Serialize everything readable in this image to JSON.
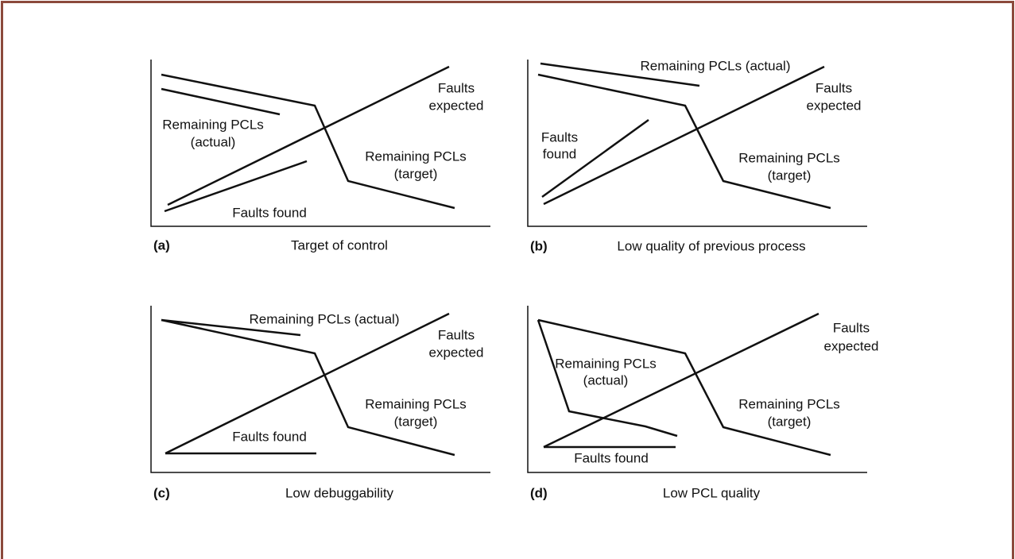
{
  "panels": [
    {
      "label": "(a)",
      "caption": "Target of control",
      "annotations": [
        [
          "Faults",
          "expected"
        ],
        [
          "Remaining PCLs",
          "(actual)"
        ],
        [
          "Remaining PCLs",
          "(target)"
        ],
        [
          "Faults found"
        ]
      ]
    },
    {
      "label": "(b)",
      "caption": "Low quality of previous process",
      "annotations": [
        [
          "Remaining PCLs (actual)"
        ],
        [
          "Faults",
          "expected"
        ],
        [
          "Faults",
          "found"
        ],
        [
          "Remaining PCLs",
          "(target)"
        ]
      ]
    },
    {
      "label": "(c)",
      "caption": "Low debuggability",
      "annotations": [
        [
          "Remaining PCLs (actual)"
        ],
        [
          "Faults",
          "expected"
        ],
        [
          "Remaining PCLs",
          "(target)"
        ],
        [
          "Faults found"
        ]
      ]
    },
    {
      "label": "(d)",
      "caption": "Low PCL quality",
      "annotations": [
        [
          "Faults",
          "expected"
        ],
        [
          "Remaining PCLs",
          "(actual)"
        ],
        [
          "Remaining PCLs",
          "(target)"
        ],
        [
          "Faults found"
        ]
      ]
    }
  ]
}
